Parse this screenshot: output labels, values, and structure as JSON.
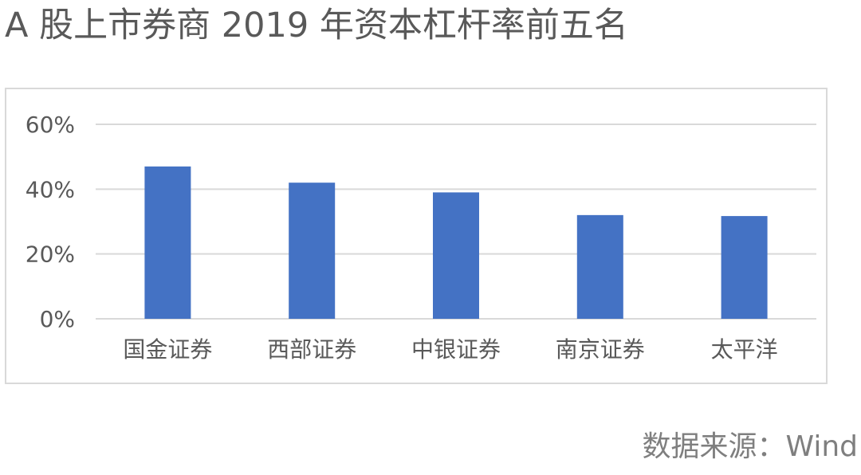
{
  "title": "A 股上市券商 2019 年资本杠杆率前五名",
  "source": "数据来源：Wind",
  "chart_data": {
    "type": "bar",
    "categories": [
      "国金证券",
      "西部证券",
      "中银证券",
      "南京证券",
      "太平洋"
    ],
    "values": [
      47.0,
      42.0,
      39.0,
      32.0,
      31.7
    ],
    "ylim": [
      0,
      60
    ],
    "yticks": [
      0,
      20,
      40,
      60
    ],
    "ytick_labels": [
      "0%",
      "20%",
      "40%",
      "60%"
    ],
    "grid": true,
    "bar_color": "#4472C4",
    "grid_color": "#d9d9d9",
    "axis_label_color": "#595959"
  }
}
